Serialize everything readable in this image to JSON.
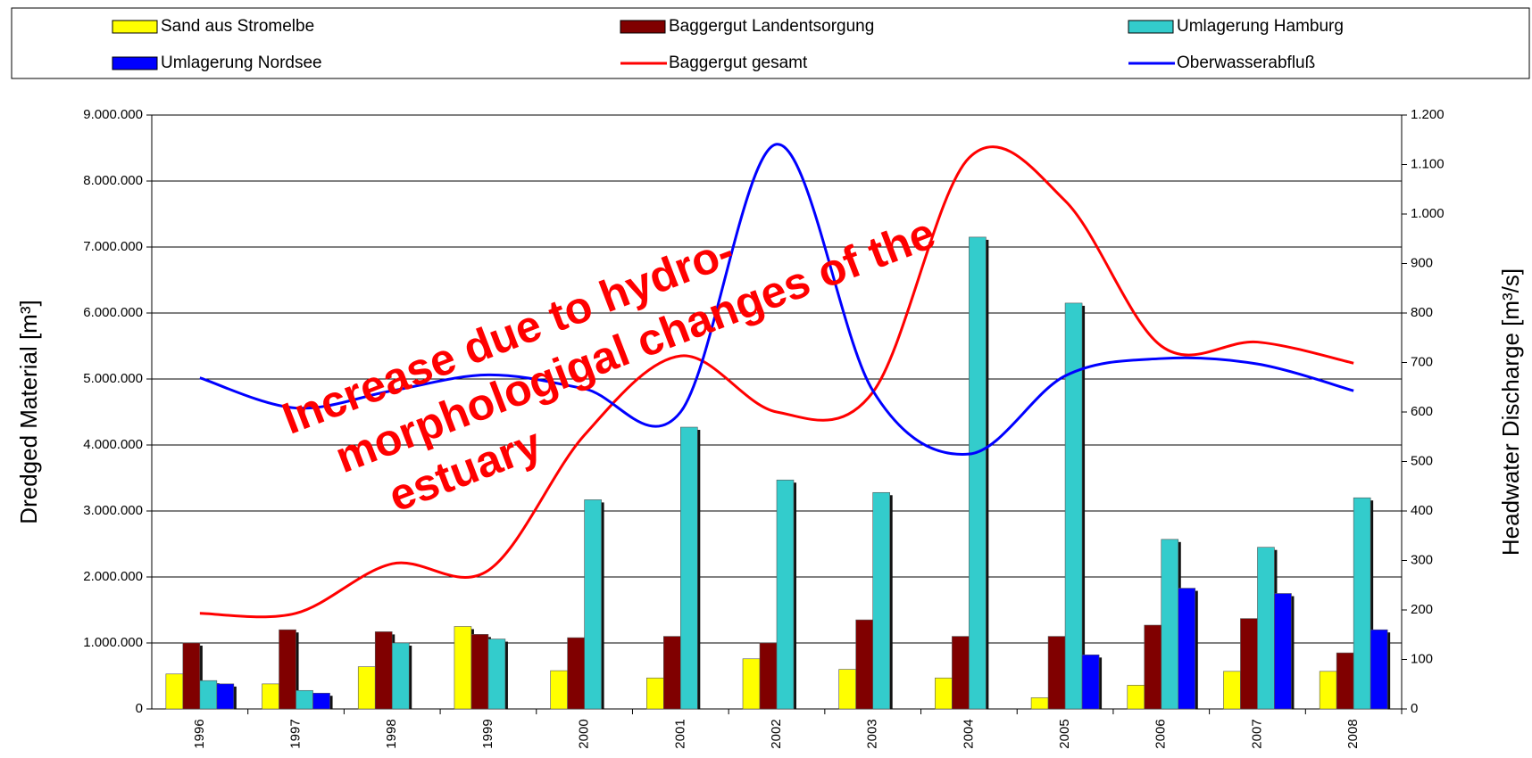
{
  "chart_data": {
    "type": "bar",
    "categories": [
      "1996",
      "1997",
      "1998",
      "1999",
      "2000",
      "2001",
      "2002",
      "2003",
      "2004",
      "2005",
      "2006",
      "2007",
      "2008"
    ],
    "series": [
      {
        "name": "Sand aus Stromelbe",
        "color": "#ffff00",
        "values": [
          530000,
          380000,
          640000,
          1250000,
          580000,
          470000,
          760000,
          600000,
          470000,
          170000,
          360000,
          570000,
          570000
        ]
      },
      {
        "name": "Baggergut Landentsorgung",
        "color": "#800000",
        "values": [
          1000000,
          1200000,
          1170000,
          1130000,
          1080000,
          1100000,
          1000000,
          1350000,
          1100000,
          1100000,
          1270000,
          1370000,
          850000
        ]
      },
      {
        "name": "Umlagerung Hamburg",
        "color": "#33cccc",
        "values": [
          430000,
          280000,
          1000000,
          1060000,
          3170000,
          4270000,
          3470000,
          3280000,
          7150000,
          6150000,
          2570000,
          2450000,
          3200000
        ]
      },
      {
        "name": "Umlagerung Nordsee",
        "color": "#0000ff",
        "values": [
          380000,
          240000,
          0,
          0,
          0,
          0,
          0,
          0,
          0,
          820000,
          1830000,
          1750000,
          1200000
        ]
      },
      {
        "name": "Baggergut gesamt",
        "type": "line",
        "color": "#ff0000",
        "values": [
          1450000,
          1450000,
          2200000,
          2100000,
          4150000,
          5350000,
          4500000,
          4800000,
          8350000,
          7700000,
          5500000,
          5560000,
          5240000
        ]
      },
      {
        "name": "Oberwasserabfluß",
        "type": "line",
        "axis": "y2",
        "color": "#0000ff",
        "values": [
          669,
          608,
          643,
          675,
          647,
          600,
          1141,
          643,
          515,
          673,
          708,
          697,
          643
        ]
      }
    ],
    "ylim": [
      0,
      9000000
    ],
    "yticks": [
      0,
      {
        "value": 1000000,
        "label": "1.000.000"
      },
      {
        "value": 2000000,
        "label": "2.000.000"
      },
      {
        "value": 3000000,
        "label": "3.000.000"
      },
      {
        "value": 4000000,
        "label": "4.000.000"
      },
      {
        "value": 5000000,
        "label": "5.000.000"
      },
      {
        "value": 6000000,
        "label": "6.000.000"
      },
      {
        "value": 7000000,
        "label": "7.000.000"
      },
      {
        "value": 8000000,
        "label": "8.000.000"
      },
      {
        "value": 9000000,
        "label": "9.000.000"
      }
    ],
    "y2lim": [
      0,
      1200
    ],
    "y2ticks": [
      0,
      100,
      200,
      300,
      400,
      500,
      600,
      700,
      800,
      900,
      {
        "value": 1000,
        "label": "1.000"
      },
      {
        "value": 1100,
        "label": "1.100"
      },
      {
        "value": 1200,
        "label": "1.200"
      }
    ],
    "ylabel": "Dredged Material [m³]",
    "y2label": "Headwater Discharge [m³/s]",
    "annotation": [
      "Increase due to hydro-",
      "morphologigal changes of the",
      "estuary"
    ],
    "grid": true
  }
}
